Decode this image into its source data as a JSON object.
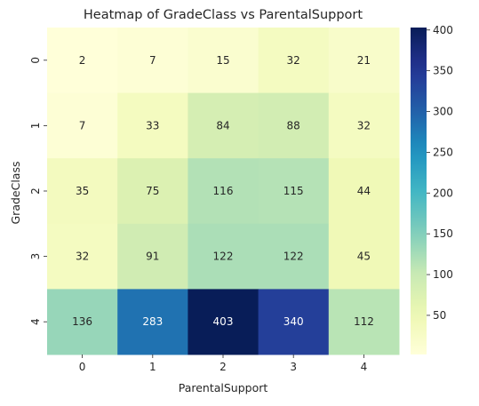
{
  "chart_data": {
    "type": "heatmap",
    "title": "Heatmap of GradeClass vs ParentalSupport",
    "xlabel": "ParentalSupport",
    "ylabel": "GradeClass",
    "x_categories": [
      "0",
      "1",
      "2",
      "3",
      "4"
    ],
    "y_categories": [
      "0",
      "1",
      "2",
      "3",
      "4"
    ],
    "values": [
      [
        2,
        7,
        15,
        32,
        21
      ],
      [
        7,
        33,
        84,
        88,
        32
      ],
      [
        35,
        75,
        116,
        115,
        44
      ],
      [
        32,
        91,
        122,
        122,
        45
      ],
      [
        136,
        283,
        403,
        340,
        112
      ]
    ],
    "colormap": "YlGnBu",
    "colorbar": {
      "vmin": 2,
      "vmax": 403,
      "ticks": [
        50,
        100,
        150,
        200,
        250,
        300,
        350,
        400
      ]
    },
    "annotations": true
  }
}
